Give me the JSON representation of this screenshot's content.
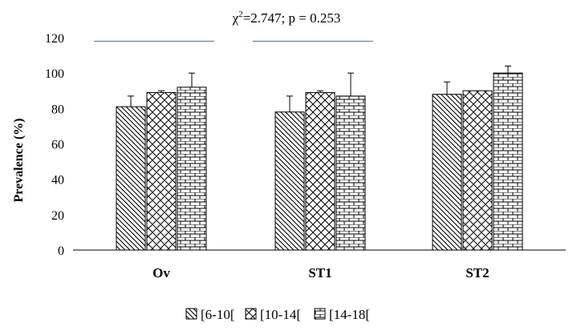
{
  "chart_data": {
    "type": "bar",
    "title": "χ²=2.747; p = 0.253",
    "title_parts": {
      "chi": "χ",
      "sup": "2",
      "rest": "=2.747; p = 0.253"
    },
    "ylabel": "Prevalence  (%)",
    "xlabel": "",
    "ylim": [
      0,
      120
    ],
    "yticks": [
      "0",
      "20",
      "40",
      "60",
      "80",
      "100",
      "120"
    ],
    "categories": [
      "Ov",
      "ST1",
      "ST2"
    ],
    "series": [
      {
        "name": "[6-10[",
        "pattern": "diagonal-down",
        "values": [
          81,
          78,
          88
        ],
        "errors": [
          6,
          9,
          7
        ]
      },
      {
        "name": "[10-14[",
        "pattern": "crosshatch",
        "values": [
          89,
          89,
          90
        ],
        "errors": [
          1,
          1,
          0
        ]
      },
      {
        "name": "[14-18[",
        "pattern": "brick",
        "values": [
          92,
          87,
          100
        ],
        "errors": [
          8,
          13,
          4
        ]
      }
    ],
    "significance_lines": [
      {
        "from": "Ov",
        "to": "Ov",
        "y": 118
      },
      {
        "from": "ST1",
        "to": "ST1",
        "y": 118
      }
    ],
    "grid": false,
    "legend_position": "bottom",
    "colors": {
      "bar_fill": "#ffffff",
      "bar_stroke": "#000000",
      "sig_line": "#5b7fa6",
      "axis": "#000000"
    }
  }
}
